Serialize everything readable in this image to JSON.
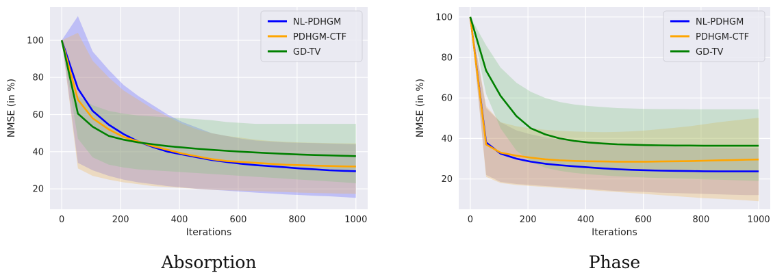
{
  "chart_data": [
    {
      "type": "line",
      "caption": "Absorption",
      "xlabel": "Iterations",
      "ylabel": "NMSE (in %)",
      "xlim": [
        -40,
        1040
      ],
      "ylim": [
        9,
        118
      ],
      "xticks": [
        0,
        200,
        400,
        600,
        800,
        1000
      ],
      "yticks": [
        20,
        40,
        60,
        80,
        100
      ],
      "grid": true,
      "legend": "top-right",
      "x": [
        0,
        55,
        105,
        160,
        210,
        260,
        310,
        360,
        410,
        460,
        510,
        560,
        610,
        660,
        710,
        760,
        810,
        860,
        910,
        960,
        1000
      ],
      "series": [
        {
          "name": "NL-PDHGM",
          "color": "#0000ff",
          "band_color": "#5b5bff",
          "values": [
            100,
            74,
            62,
            54.5,
            49.5,
            45.5,
            42.5,
            40,
            38.5,
            37,
            35.5,
            34.5,
            33.5,
            32.8,
            32.2,
            31.6,
            31,
            30.5,
            30,
            29.7,
            29.5
          ],
          "lower": [
            100,
            34,
            30,
            27,
            25,
            23.5,
            22.5,
            21.5,
            20.8,
            20,
            19.5,
            19,
            18.5,
            18,
            17.5,
            17,
            16.7,
            16.3,
            16,
            15.5,
            15.2
          ],
          "upper": [
            100,
            113,
            94,
            84,
            76,
            70,
            65,
            60,
            56,
            53,
            50,
            48.5,
            47,
            46,
            45.5,
            45,
            44.8,
            44.6,
            44.4,
            44.2,
            44
          ]
        },
        {
          "name": "PDHGM-CTF",
          "color": "#ffa500",
          "band_color": "#f2b64e",
          "values": [
            100,
            68,
            58,
            52,
            48,
            45.5,
            43,
            41,
            39,
            37.5,
            36,
            35,
            34.5,
            34,
            33.5,
            33,
            32.8,
            32.5,
            32.3,
            32.1,
            32
          ],
          "lower": [
            100,
            31,
            27,
            25,
            23.5,
            22.5,
            21.5,
            21,
            20.5,
            20,
            19.5,
            19.2,
            19,
            18.8,
            18.5,
            18.3,
            18,
            17.8,
            17.6,
            17.4,
            17.3
          ],
          "upper": [
            100,
            104,
            89,
            80,
            73,
            68,
            63,
            59,
            55,
            52,
            50,
            48.5,
            47.5,
            46.5,
            45.8,
            45.3,
            45,
            44.8,
            44.6,
            44.5,
            44.5
          ]
        },
        {
          "name": "GD-TV",
          "color": "#008000",
          "band_color": "#7fc47f",
          "values": [
            100,
            60.5,
            53.5,
            48.5,
            46.5,
            45,
            44,
            43,
            42.3,
            41.6,
            41,
            40.5,
            40,
            39.6,
            39.2,
            38.8,
            38.5,
            38.2,
            38,
            37.8,
            37.6
          ],
          "lower": [
            100,
            47,
            37,
            33,
            31.5,
            30.5,
            30,
            29.5,
            29,
            28.5,
            28,
            27.5,
            27,
            26.5,
            26,
            25.5,
            25,
            24.5,
            24,
            23.5,
            23
          ],
          "upper": [
            100,
            70,
            65,
            62,
            60.5,
            59.5,
            59,
            58.5,
            58,
            57.5,
            57,
            56,
            55.5,
            55,
            55,
            55,
            55,
            55,
            55,
            55,
            55
          ]
        }
      ]
    },
    {
      "type": "line",
      "caption": "Phase",
      "xlabel": "Iterations",
      "ylabel": "NMSE (in %)",
      "xlim": [
        -40,
        1040
      ],
      "ylim": [
        5,
        105
      ],
      "xticks": [
        0,
        200,
        400,
        600,
        800,
        1000
      ],
      "yticks": [
        20,
        40,
        60,
        80,
        100
      ],
      "grid": true,
      "legend": "top-right",
      "x": [
        0,
        55,
        105,
        160,
        210,
        260,
        310,
        360,
        410,
        460,
        510,
        560,
        610,
        660,
        710,
        760,
        810,
        860,
        910,
        960,
        1000
      ],
      "series": [
        {
          "name": "NL-PDHGM",
          "color": "#0000ff",
          "band_color": "#8a6fb5",
          "values": [
            100,
            38,
            32.5,
            30,
            28.5,
            27.5,
            26.8,
            26.2,
            25.7,
            25.2,
            24.8,
            24.5,
            24.3,
            24.1,
            24,
            23.9,
            23.8,
            23.7,
            23.7,
            23.7,
            23.7
          ],
          "lower": [
            100,
            22,
            18.5,
            17.5,
            17,
            16.5,
            16,
            15.5,
            15,
            14.5,
            14,
            13.8,
            13.5,
            13.2,
            13,
            12.8,
            12.6,
            12.4,
            12.2,
            12,
            12
          ],
          "upper": [
            100,
            55,
            48,
            44,
            42,
            40.5,
            39.5,
            38.8,
            38,
            37.5,
            37,
            36.5,
            36.2,
            36,
            35.8,
            35.6,
            35.5,
            35.4,
            35.3,
            35.2,
            35.2
          ]
        },
        {
          "name": "PDHGM-CTF",
          "color": "#ffa500",
          "band_color": "#f2b64e",
          "values": [
            100,
            37,
            33,
            31.5,
            30.5,
            29.7,
            29.2,
            28.9,
            28.7,
            28.6,
            28.5,
            28.5,
            28.5,
            28.6,
            28.7,
            28.8,
            29,
            29.2,
            29.3,
            29.5,
            29.6
          ],
          "lower": [
            100,
            21,
            18,
            17,
            16.5,
            16,
            15.5,
            15,
            14.5,
            14,
            13.5,
            13,
            12.5,
            12,
            11.5,
            11,
            10.5,
            10.2,
            9.8,
            9.4,
            9
          ],
          "upper": [
            100,
            56,
            48,
            46,
            45,
            44.3,
            43.8,
            43.4,
            43.2,
            43.1,
            43.2,
            43.5,
            44,
            44.6,
            45.3,
            46,
            47,
            48,
            48.8,
            49.6,
            50.2
          ]
        },
        {
          "name": "GD-TV",
          "color": "#008000",
          "band_color": "#7fc47f",
          "values": [
            100,
            73.5,
            61,
            51,
            45,
            42,
            40,
            38.8,
            38,
            37.5,
            37.1,
            36.9,
            36.7,
            36.6,
            36.5,
            36.5,
            36.4,
            36.4,
            36.4,
            36.4,
            36.4
          ],
          "lower": [
            100,
            62,
            45,
            34,
            28.5,
            25.5,
            24,
            23,
            22.3,
            21.8,
            21.3,
            21,
            20.7,
            20.4,
            20.2,
            20,
            19.8,
            19.6,
            19.4,
            19.2,
            19
          ],
          "upper": [
            100,
            86,
            75,
            67.5,
            63,
            60,
            58,
            56.8,
            56,
            55.5,
            55,
            54.8,
            54.6,
            54.5,
            54.5,
            54.4,
            54.4,
            54.4,
            54.4,
            54.4,
            54.4
          ]
        }
      ]
    }
  ]
}
